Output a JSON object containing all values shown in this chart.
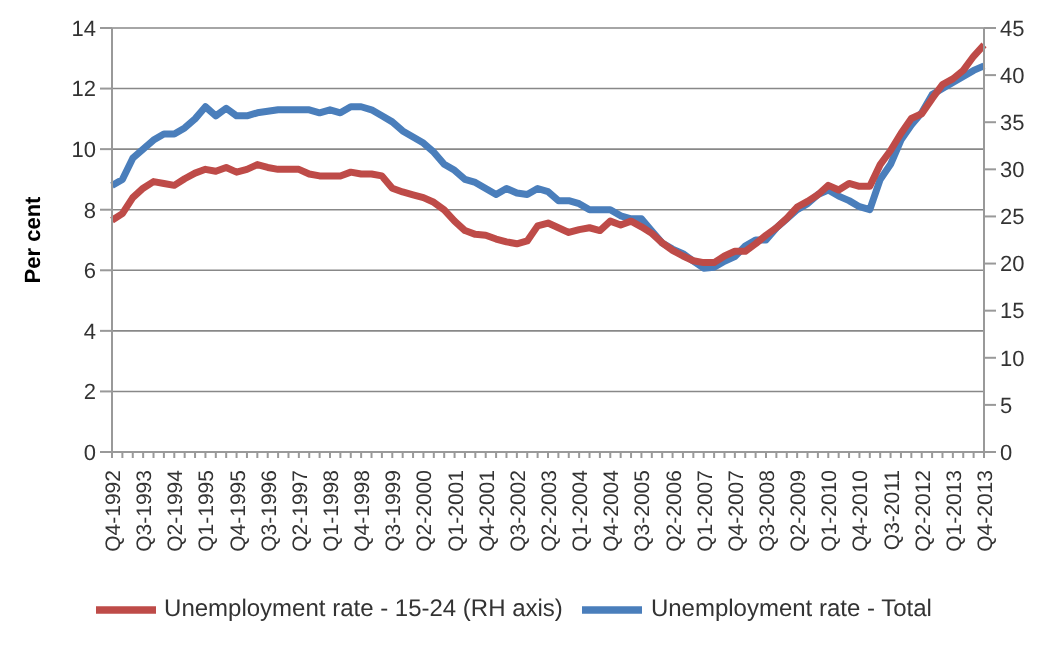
{
  "chart_data": {
    "type": "line",
    "categories": [
      "Q4-1992",
      null,
      null,
      "Q3-1993",
      null,
      null,
      "Q2-1994",
      null,
      null,
      "Q1-1995",
      null,
      null,
      "Q4-1995",
      null,
      null,
      "Q3-1996",
      null,
      null,
      "Q2-1997",
      null,
      null,
      "Q1-1998",
      null,
      null,
      "Q4-1998",
      null,
      null,
      "Q3-1999",
      null,
      null,
      "Q2-2000",
      null,
      null,
      "Q1-2001",
      null,
      null,
      "Q4-2001",
      null,
      null,
      "Q3-2002",
      null,
      null,
      "Q2-2003",
      null,
      null,
      "Q1-2004",
      null,
      null,
      "Q4-2004",
      null,
      null,
      "Q3-2005",
      null,
      null,
      "Q2-2006",
      null,
      null,
      "Q1-2007",
      null,
      null,
      "Q4-2007",
      null,
      null,
      "Q3-2008",
      null,
      null,
      "Q2-2009",
      null,
      null,
      "Q1-2010",
      null,
      null,
      "Q4-2010",
      null,
      null,
      "Q3-2011",
      null,
      null,
      "Q2-2012",
      null,
      null,
      "Q1-2013",
      null,
      null,
      "Q4-2013"
    ],
    "ylabel": "Per cent",
    "ylim": [
      0,
      14
    ],
    "yticks": [
      0,
      2,
      4,
      6,
      8,
      10,
      12,
      14
    ],
    "y2lim": [
      0,
      45
    ],
    "y2ticks": [
      0,
      5,
      10,
      15,
      20,
      25,
      30,
      35,
      40,
      45
    ],
    "grid": "y",
    "legend": "bottom",
    "marker": "none",
    "line_style": "solid",
    "series": [
      {
        "name": "Unemployment rate - Total",
        "color": "#4a7ebb",
        "values": [
          8.8,
          9.0,
          9.7,
          10.0,
          10.3,
          10.5,
          10.5,
          10.7,
          11.0,
          11.4,
          11.1,
          11.35,
          11.1,
          11.1,
          11.2,
          11.25,
          11.3,
          11.3,
          11.3,
          11.3,
          11.2,
          11.3,
          11.2,
          11.4,
          11.4,
          11.3,
          11.1,
          10.9,
          10.6,
          10.4,
          10.2,
          9.9,
          9.5,
          9.3,
          9.0,
          8.9,
          8.7,
          8.5,
          8.7,
          8.55,
          8.5,
          8.7,
          8.6,
          8.3,
          8.3,
          8.2,
          8.0,
          8.0,
          8.0,
          7.8,
          7.7,
          7.7,
          7.3,
          6.9,
          6.7,
          6.55,
          6.3,
          6.07,
          6.1,
          6.3,
          6.45,
          6.8,
          7.0,
          7.0,
          7.4,
          7.7,
          8.0,
          8.2,
          8.5,
          8.65,
          8.45,
          8.3,
          8.1,
          8.0,
          9.0,
          9.5,
          10.3,
          10.8,
          11.2,
          11.8,
          12.0,
          12.2,
          12.4,
          12.6,
          12.75
        ]
      },
      {
        "name": "Unemployment rate - 15-24 (RH axis)",
        "color": "#be4b48",
        "axis": "y2",
        "values": [
          24.6,
          25.3,
          27.0,
          28.0,
          28.7,
          28.5,
          28.3,
          29.0,
          29.6,
          30.0,
          29.8,
          30.2,
          29.7,
          30.0,
          30.5,
          30.2,
          30.0,
          30.0,
          30.0,
          29.5,
          29.3,
          29.3,
          29.3,
          29.7,
          29.5,
          29.5,
          29.3,
          28.0,
          27.6,
          27.3,
          27.0,
          26.5,
          25.7,
          24.5,
          23.5,
          23.1,
          23.0,
          22.6,
          22.3,
          22.1,
          22.4,
          24.0,
          24.3,
          23.8,
          23.3,
          23.6,
          23.8,
          23.5,
          24.5,
          24.1,
          24.5,
          23.9,
          23.2,
          22.2,
          21.4,
          20.8,
          20.3,
          20.1,
          20.1,
          20.8,
          21.3,
          21.3,
          22.1,
          23.0,
          23.8,
          24.8,
          26.0,
          26.6,
          27.3,
          28.3,
          27.8,
          28.5,
          28.2,
          28.2,
          30.5,
          32.0,
          33.8,
          35.4,
          35.9,
          37.5,
          39.0,
          39.6,
          40.5,
          42.0,
          43.2
        ]
      }
    ]
  }
}
